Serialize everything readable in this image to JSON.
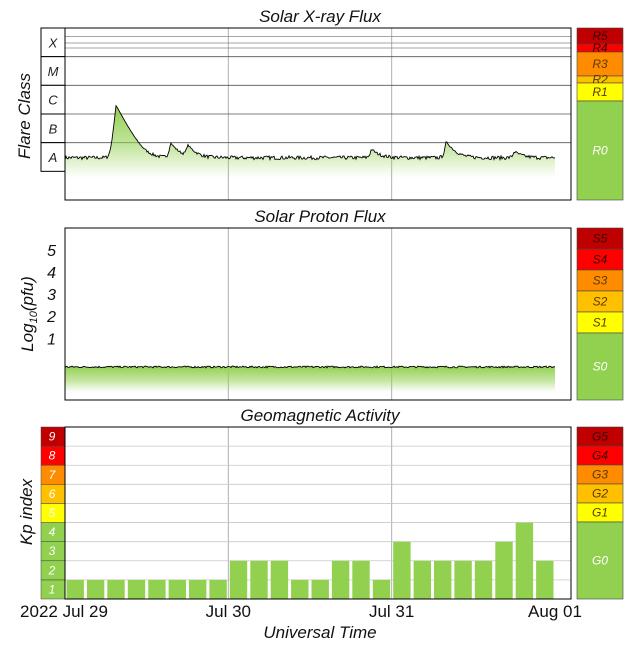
{
  "chart_data": [
    {
      "type": "area",
      "title": "Solar X-ray Flux",
      "ylabel": "Flare Class",
      "class_labels": [
        "X",
        "M",
        "C",
        "B",
        "A"
      ],
      "scale": [
        "R5",
        "R4",
        "R3",
        "R2",
        "R1",
        "R0"
      ],
      "y_scale": "log",
      "ylim_wm2": [
        1e-09,
        0.001
      ],
      "x_range_days": [
        "2022-07-29",
        "2022-08-01"
      ],
      "baseline_wm2": 3e-08,
      "peaks": [
        {
          "time": "2022-07-29 07:30",
          "flux_wm2": 2e-06
        },
        {
          "time": "2022-07-29 15:30",
          "flux_wm2": 1e-07
        },
        {
          "time": "2022-07-29 18:00",
          "flux_wm2": 8e-08
        },
        {
          "time": "2022-07-30 21:00",
          "flux_wm2": 6e-08
        },
        {
          "time": "2022-07-31 08:00",
          "flux_wm2": 1.1e-07
        },
        {
          "time": "2022-07-31 18:00",
          "flux_wm2": 5e-08
        },
        {
          "time": "2022-08-01 03:30",
          "flux_wm2": 1e-07
        }
      ]
    },
    {
      "type": "area",
      "title": "Solar Proton Flux",
      "ylabel": "Log10(pfu)",
      "ylabel_main": "Log",
      "ylabel_sub": "10",
      "ylabel_end": "(pfu)",
      "y_ticks": [
        "1",
        "2",
        "3",
        "4",
        "5"
      ],
      "ylim": [
        -1.8,
        6
      ],
      "scale": [
        "S5",
        "S4",
        "S3",
        "S2",
        "S1",
        "S0"
      ],
      "baseline_log_pfu": -0.3
    },
    {
      "type": "bar",
      "title": "Geomagnetic Activity",
      "ylabel": "Kp index",
      "kp_levels": [
        "1",
        "2",
        "3",
        "4",
        "5",
        "6",
        "7",
        "8",
        "9"
      ],
      "scale": [
        "G5",
        "G4",
        "G3",
        "G2",
        "G1",
        "G0"
      ],
      "ylim": [
        0,
        9
      ],
      "interval_hours": 3,
      "values": [
        1,
        1,
        1,
        1,
        1,
        1,
        1,
        1,
        2,
        2,
        2,
        1,
        1,
        2,
        2,
        1,
        3,
        2,
        2,
        2,
        2,
        3,
        4,
        2
      ],
      "xlabel": "Universal Time",
      "x_tick_labels": [
        "2022 Jul 29",
        "Jul 30",
        "Jul 31",
        "Aug 01"
      ]
    }
  ],
  "colors": {
    "R5": "#c00000",
    "R4": "#ff0000",
    "R3": "#ff8c00",
    "R2": "#ffc000",
    "R1": "#ffff00",
    "R0": "#92d050",
    "flux_fill": "#92d050",
    "border": "#000000",
    "grid": "#b0b0b0"
  }
}
